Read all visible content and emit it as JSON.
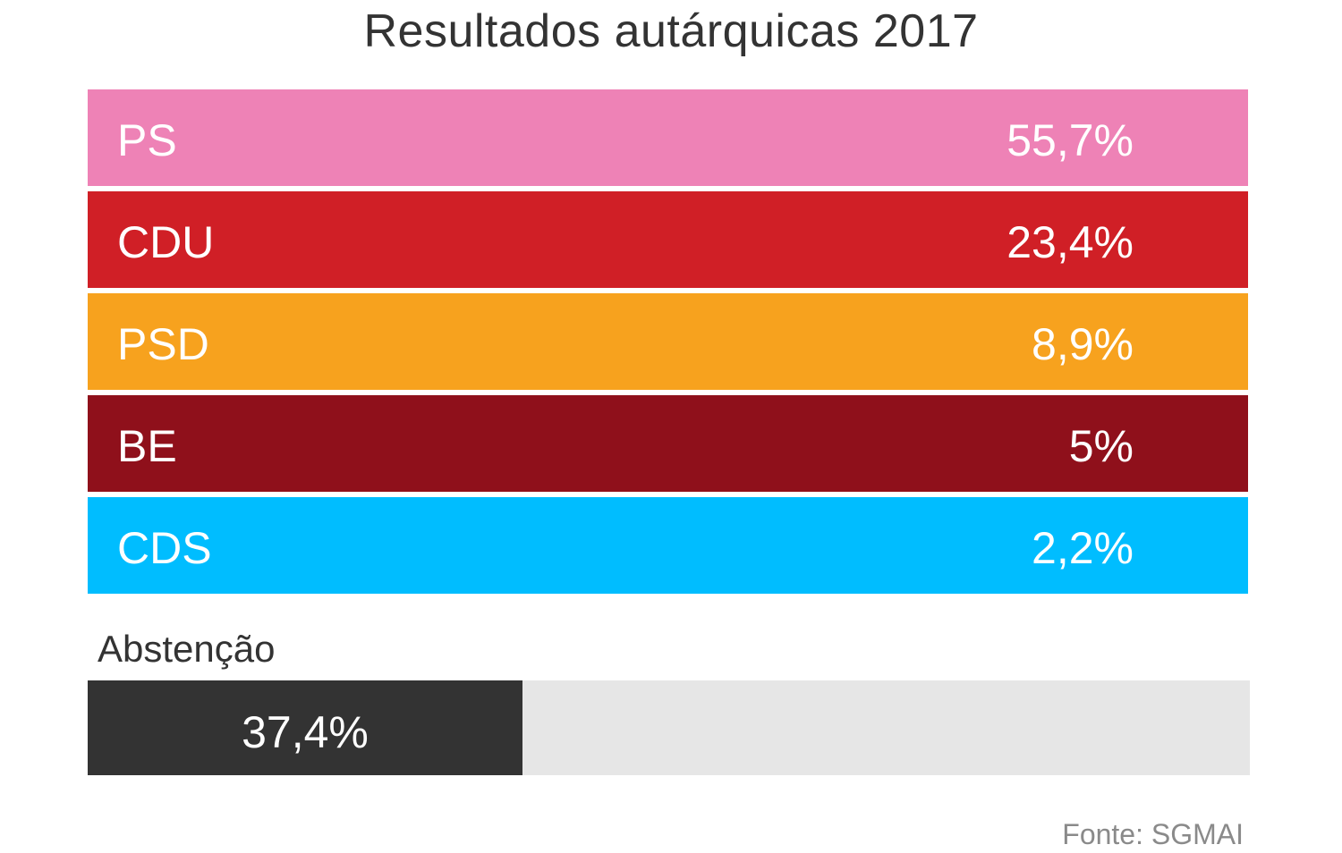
{
  "title": "Resultados autárquicas 2017",
  "parties": [
    {
      "label": "PS",
      "value_label": "55,7%",
      "color": "#ee82b6"
    },
    {
      "label": "CDU",
      "value_label": "23,4%",
      "color": "#d01f26"
    },
    {
      "label": "PSD",
      "value_label": "8,9%",
      "color": "#f7a21e"
    },
    {
      "label": "BE",
      "value_label": "5%",
      "color": "#8f101b"
    },
    {
      "label": "CDS",
      "value_label": "2,2%",
      "color": "#00bdff"
    }
  ],
  "abstention": {
    "label": "Abstenção",
    "value_label": "37,4%",
    "value": 37.4,
    "fill_color": "#333333",
    "track_color": "#e6e6e6"
  },
  "source": "Fonte: SGMAI",
  "chart_data": {
    "type": "table",
    "title": "Resultados autárquicas 2017",
    "categories": [
      "PS",
      "CDU",
      "PSD",
      "BE",
      "CDS"
    ],
    "values": [
      55.7,
      23.4,
      8.9,
      5,
      2.2
    ],
    "abstention": 37.4,
    "source": "Fonte: SGMAI"
  }
}
